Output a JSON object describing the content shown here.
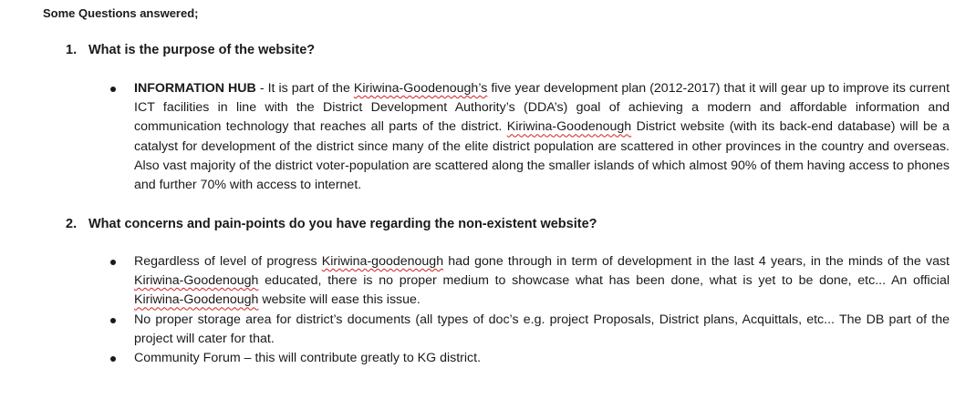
{
  "intro": "Some Questions answered;",
  "questions": [
    {
      "number": "1.",
      "text": "What is the purpose of the website?"
    },
    {
      "number": "2.",
      "text": "What concerns and pain-points do you have regarding the non-existent website?"
    }
  ],
  "q1_bullet": {
    "lead": "INFORMATION HUB",
    "t1": " - It is part of the ",
    "kg1": "Kiriwina-Goodenough’s",
    "t2": " five year development plan (2012-2017) that it will gear up to improve its current ICT facilities in line with the District Development Authority’s (DDA’s) goal of achieving a modern and affordable information and communication technology that reaches all parts of the district. ",
    "kg2": "Kiriwina-Goodenough",
    "t3": " District website (with its back-end database) will be a catalyst for development of the district since many of the elite district population are scattered in other provinces in the country and overseas. Also vast majority of the district voter-population are scattered along the smaller islands of which almost 90% of them having access to phones and further 70% with access to internet."
  },
  "q2_bullets": {
    "b1_t1": "Regardless of level of progress ",
    "b1_kg1": "Kiriwina-goodenough",
    "b1_t2": " had gone through in term of development in the last 4 years, in the minds of the vast ",
    "b1_kg2": "Kiriwina-Goodenough",
    "b1_t3": " educated, there is no proper medium to showcase what has been done, what is yet to be done, etc... An official ",
    "b1_kg3": "Kiriwina-Goodenough",
    "b1_t4": " website will ease this issue.",
    "b2": "No proper storage area for district’s documents (all types of doc’s e.g. project Proposals, District plans, Acquittals, etc... The DB part of the project will cater for that.",
    "b3": "Community Forum – this will contribute greatly to KG district."
  }
}
